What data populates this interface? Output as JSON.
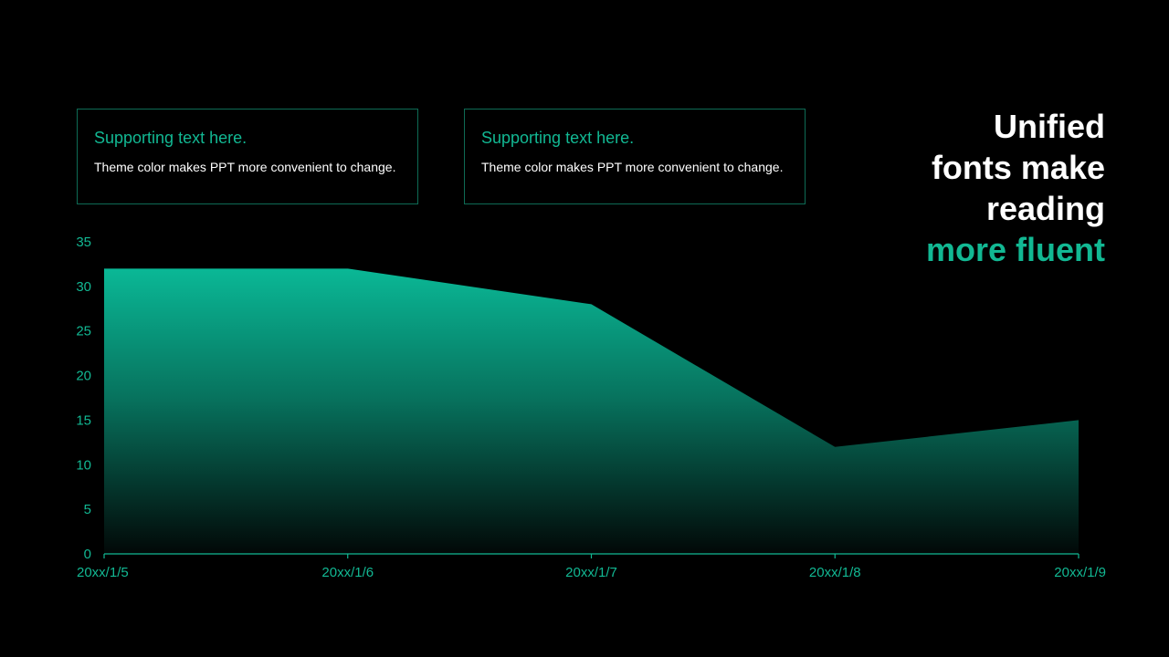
{
  "cards": [
    {
      "title": "Supporting text here.",
      "body": "Theme color makes PPT more convenient to change."
    },
    {
      "title": "Supporting text here.",
      "body": "Theme color makes PPT more convenient to change."
    }
  ],
  "headline": {
    "lines": [
      "Unified",
      "fonts make",
      "reading"
    ],
    "accent": "more fluent"
  },
  "colors": {
    "background": "#000000",
    "accent": "#12b893",
    "text": "#ffffff"
  },
  "chart_data": {
    "type": "area",
    "categories": [
      "20xx/1/5",
      "20xx/1/6",
      "20xx/1/7",
      "20xx/1/8",
      "20xx/1/9"
    ],
    "series": [
      {
        "values": [
          32,
          32,
          28,
          12,
          15
        ]
      }
    ],
    "ylim": [
      0,
      35
    ],
    "yticks": [
      0,
      5,
      10,
      15,
      20,
      25,
      30,
      35
    ],
    "grid": false,
    "legend": "none",
    "title": "",
    "xlabel": "",
    "ylabel": ""
  }
}
